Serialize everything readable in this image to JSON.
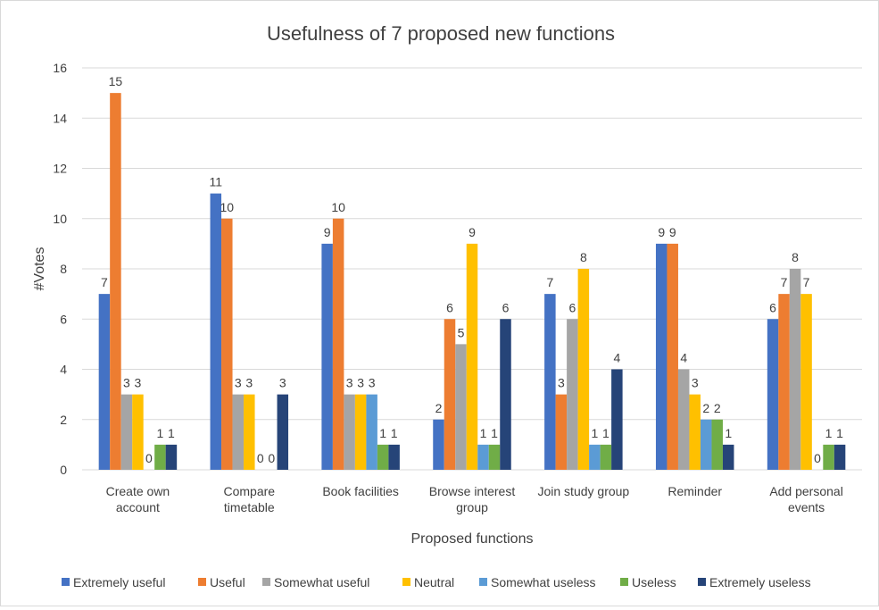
{
  "chart_data": {
    "type": "bar",
    "title": "Usefulness of 7 proposed new functions",
    "xlabel": "Proposed functions",
    "ylabel": "#Votes",
    "ylim": [
      0,
      16
    ],
    "yticks": [
      0,
      2,
      4,
      6,
      8,
      10,
      12,
      14,
      16
    ],
    "grid": true,
    "legend": "bottom",
    "categories": [
      [
        "Create own",
        "account"
      ],
      [
        "Compare",
        "timetable"
      ],
      [
        "Book facilities"
      ],
      [
        "Browse interest",
        "group"
      ],
      [
        "Join study group"
      ],
      [
        "Reminder"
      ],
      [
        "Add personal",
        "events"
      ]
    ],
    "series": [
      {
        "name": "Extremely useful",
        "color": "#4472c4",
        "values": [
          7,
          11,
          9,
          2,
          7,
          9,
          6
        ]
      },
      {
        "name": "Useful",
        "color": "#ed7d31",
        "values": [
          15,
          10,
          10,
          6,
          3,
          9,
          7
        ]
      },
      {
        "name": "Somewhat useful",
        "color": "#a5a5a5",
        "values": [
          3,
          3,
          3,
          5,
          6,
          4,
          8
        ]
      },
      {
        "name": "Neutral",
        "color": "#ffc000",
        "values": [
          3,
          3,
          3,
          9,
          8,
          3,
          7
        ]
      },
      {
        "name": "Somewhat useless",
        "color": "#5b9bd5",
        "values": [
          0,
          0,
          3,
          1,
          1,
          2,
          0
        ]
      },
      {
        "name": "Useless",
        "color": "#70ad47",
        "values": [
          1,
          0,
          1,
          1,
          1,
          2,
          1
        ]
      },
      {
        "name": "Extremely useless",
        "color": "#264478",
        "values": [
          1,
          3,
          1,
          6,
          4,
          1,
          1
        ]
      }
    ]
  }
}
